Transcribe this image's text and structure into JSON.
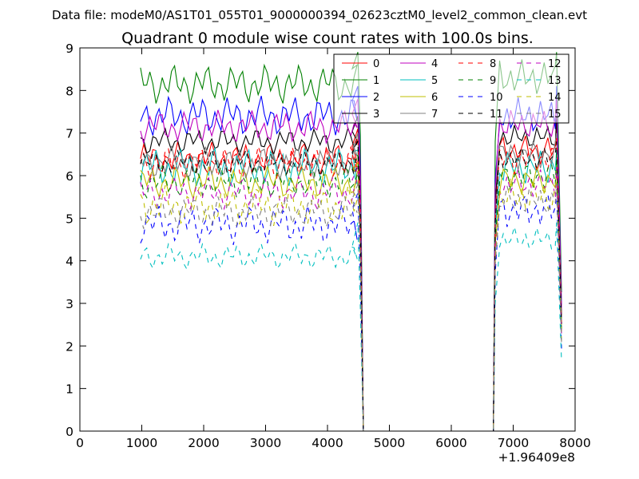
{
  "figure": {
    "suptitle": "Data file: modeM0/AS1T01_055T01_9000000394_02623cztM0_level2_common_clean.evt",
    "x_offset_label": "+1.96409e8"
  },
  "chart_data": {
    "type": "line",
    "title": "Quadrant 0 module wise count rates with 100.0s bins.",
    "xlabel": "",
    "ylabel": "",
    "xlim": [
      0,
      8000
    ],
    "ylim": [
      0,
      9
    ],
    "xticks": [
      "0",
      "1000",
      "2000",
      "3000",
      "4000",
      "5000",
      "6000",
      "7000",
      "8000"
    ],
    "yticks": [
      "0",
      "1",
      "2",
      "3",
      "4",
      "5",
      "6",
      "7",
      "8",
      "9"
    ],
    "grid": false,
    "legend_position": "top-right",
    "legend_columns": 4,
    "segments": {
      "first": {
        "x_start": 950,
        "x_end": 4550,
        "drop_at": 4580
      },
      "gap": {
        "x_start": 4580,
        "x_end": 6680,
        "value": 0
      },
      "second": {
        "x_start": 6700,
        "x_end": 7780
      }
    },
    "series": [
      {
        "name": "0",
        "color": "#ff0000",
        "dash": "solid",
        "mean": 6.4,
        "amp": 0.25,
        "second_mean": 6.6,
        "peak": 7.1
      },
      {
        "name": "1",
        "color": "#008000",
        "dash": "solid",
        "mean": 8.15,
        "amp": 0.3,
        "second_mean": 8.3,
        "peak": 8.9
      },
      {
        "name": "2",
        "color": "#0000ff",
        "dash": "solid",
        "mean": 7.4,
        "amp": 0.3,
        "second_mean": 7.4,
        "peak": 8.1
      },
      {
        "name": "3",
        "color": "#000000",
        "dash": "solid",
        "mean": 6.8,
        "amp": 0.2,
        "second_mean": 6.9,
        "peak": 7.4
      },
      {
        "name": "4",
        "color": "#bf00bf",
        "dash": "solid",
        "mean": 7.15,
        "amp": 0.25,
        "second_mean": 7.2,
        "peak": 7.8
      },
      {
        "name": "5",
        "color": "#00bfbf",
        "dash": "solid",
        "mean": 6.2,
        "amp": 0.3,
        "second_mean": 6.2,
        "peak": 6.6
      },
      {
        "name": "6",
        "color": "#bfbf00",
        "dash": "solid",
        "mean": 5.85,
        "amp": 0.25,
        "second_mean": 5.9,
        "peak": 6.3
      },
      {
        "name": "7",
        "color": "#808080",
        "dash": "solid",
        "mean": 6.3,
        "amp": 0.25,
        "second_mean": 6.5,
        "peak": 7.0
      },
      {
        "name": "8",
        "color": "#ff0000",
        "dash": "dashed",
        "mean": 6.3,
        "amp": 0.25,
        "second_mean": 6.4,
        "peak": 6.9
      },
      {
        "name": "9",
        "color": "#008000",
        "dash": "dashed",
        "mean": 5.85,
        "amp": 0.25,
        "second_mean": 6.0,
        "peak": 6.5
      },
      {
        "name": "10",
        "color": "#0000ff",
        "dash": "dashed",
        "mean": 4.85,
        "amp": 0.3,
        "second_mean": 5.2,
        "peak": 5.6
      },
      {
        "name": "11",
        "color": "#000000",
        "dash": "dashed",
        "mean": 6.3,
        "amp": 0.2,
        "second_mean": 6.4,
        "peak": 6.8
      },
      {
        "name": "12",
        "color": "#bf00bf",
        "dash": "dashed",
        "mean": 5.6,
        "amp": 0.25,
        "second_mean": 5.8,
        "peak": 6.2
      },
      {
        "name": "13",
        "color": "#00bfbf",
        "dash": "dashed",
        "mean": 4.1,
        "amp": 0.2,
        "second_mean": 4.5,
        "peak": 4.9
      },
      {
        "name": "14",
        "color": "#bfbf00",
        "dash": "dashed",
        "mean": 5.3,
        "amp": 0.3,
        "second_mean": 5.5,
        "peak": 5.9
      },
      {
        "name": "15",
        "color": "#808080",
        "dash": "dashed",
        "mean": 5.15,
        "amp": 0.25,
        "second_mean": 5.4,
        "peak": 5.8
      }
    ]
  }
}
